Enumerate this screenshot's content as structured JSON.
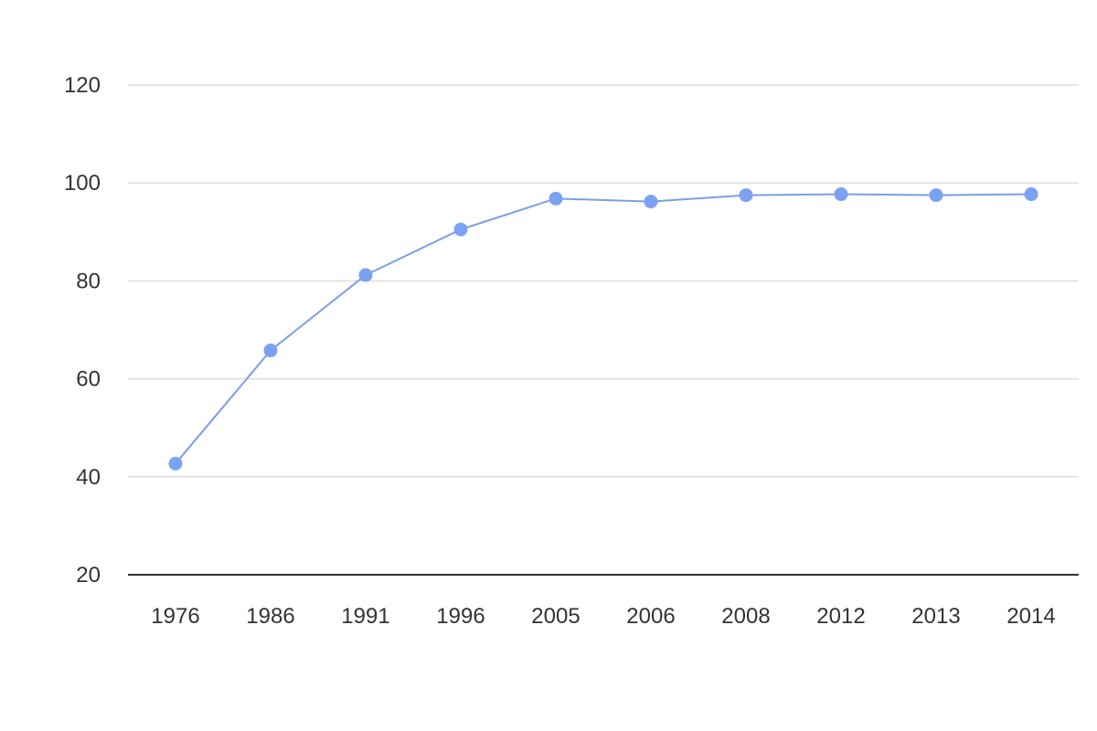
{
  "chart_data": {
    "type": "line",
    "title": "",
    "xlabel": "",
    "ylabel": "",
    "categories": [
      "1976",
      "1986",
      "1991",
      "1996",
      "2005",
      "2006",
      "2008",
      "2012",
      "2013",
      "2014"
    ],
    "series": [
      {
        "values": [
          42.7,
          65.8,
          81.2,
          90.5,
          96.8,
          96.2,
          97.5,
          97.7,
          97.5,
          97.7
        ]
      }
    ],
    "ylim": [
      20,
      120
    ],
    "yticks": [
      20,
      40,
      60,
      80,
      100,
      120
    ],
    "grid": true,
    "legend": "none",
    "colors": {
      "line": "#7b9ee8",
      "marker": "#7ba2f2",
      "grid": "#dedede",
      "axis": "#333333",
      "text": "#333333"
    }
  }
}
